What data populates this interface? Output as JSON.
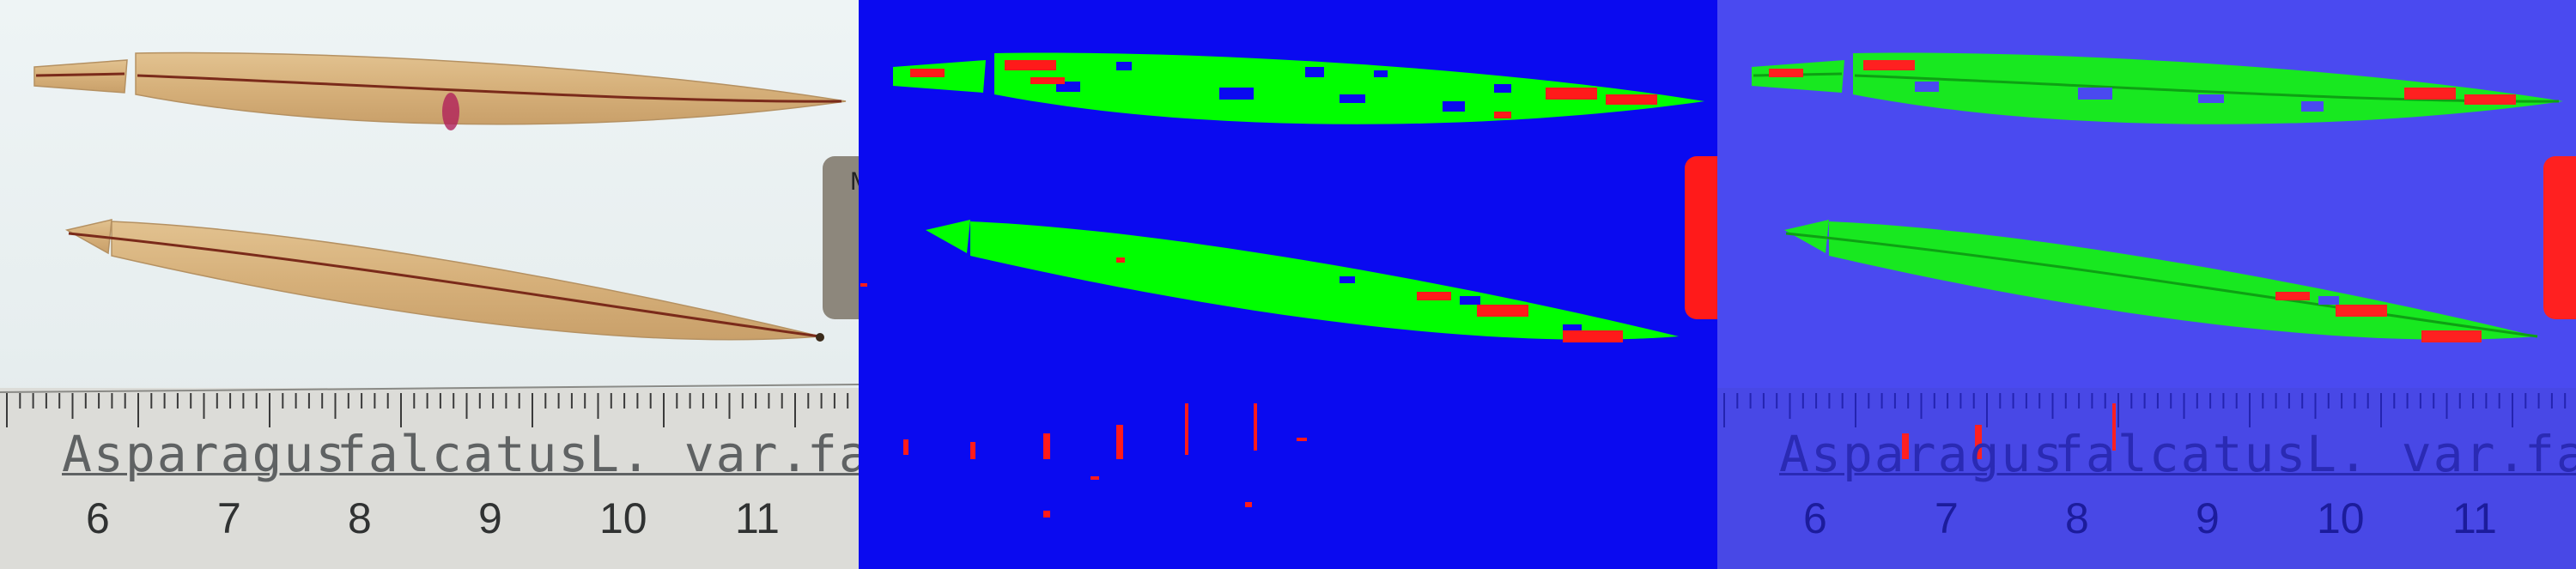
{
  "figure": {
    "panels": [
      {
        "id": "original"
      },
      {
        "id": "segmentation-mask"
      },
      {
        "id": "overlay"
      }
    ],
    "ruler": {
      "label_parts": [
        "Asparagus",
        "falcatus",
        "L. var.",
        "fa"
      ],
      "numbers": [
        "6",
        "7",
        "8",
        "9",
        "10",
        "11"
      ]
    },
    "tab_glyph": "M",
    "colors": {
      "mask_background": "#0a0af0",
      "mask_leaf": "#00ff00",
      "mask_spots": "#ff1a1a",
      "leaf_natural": "#d9b582",
      "midrib": "#7a2a1a"
    }
  }
}
